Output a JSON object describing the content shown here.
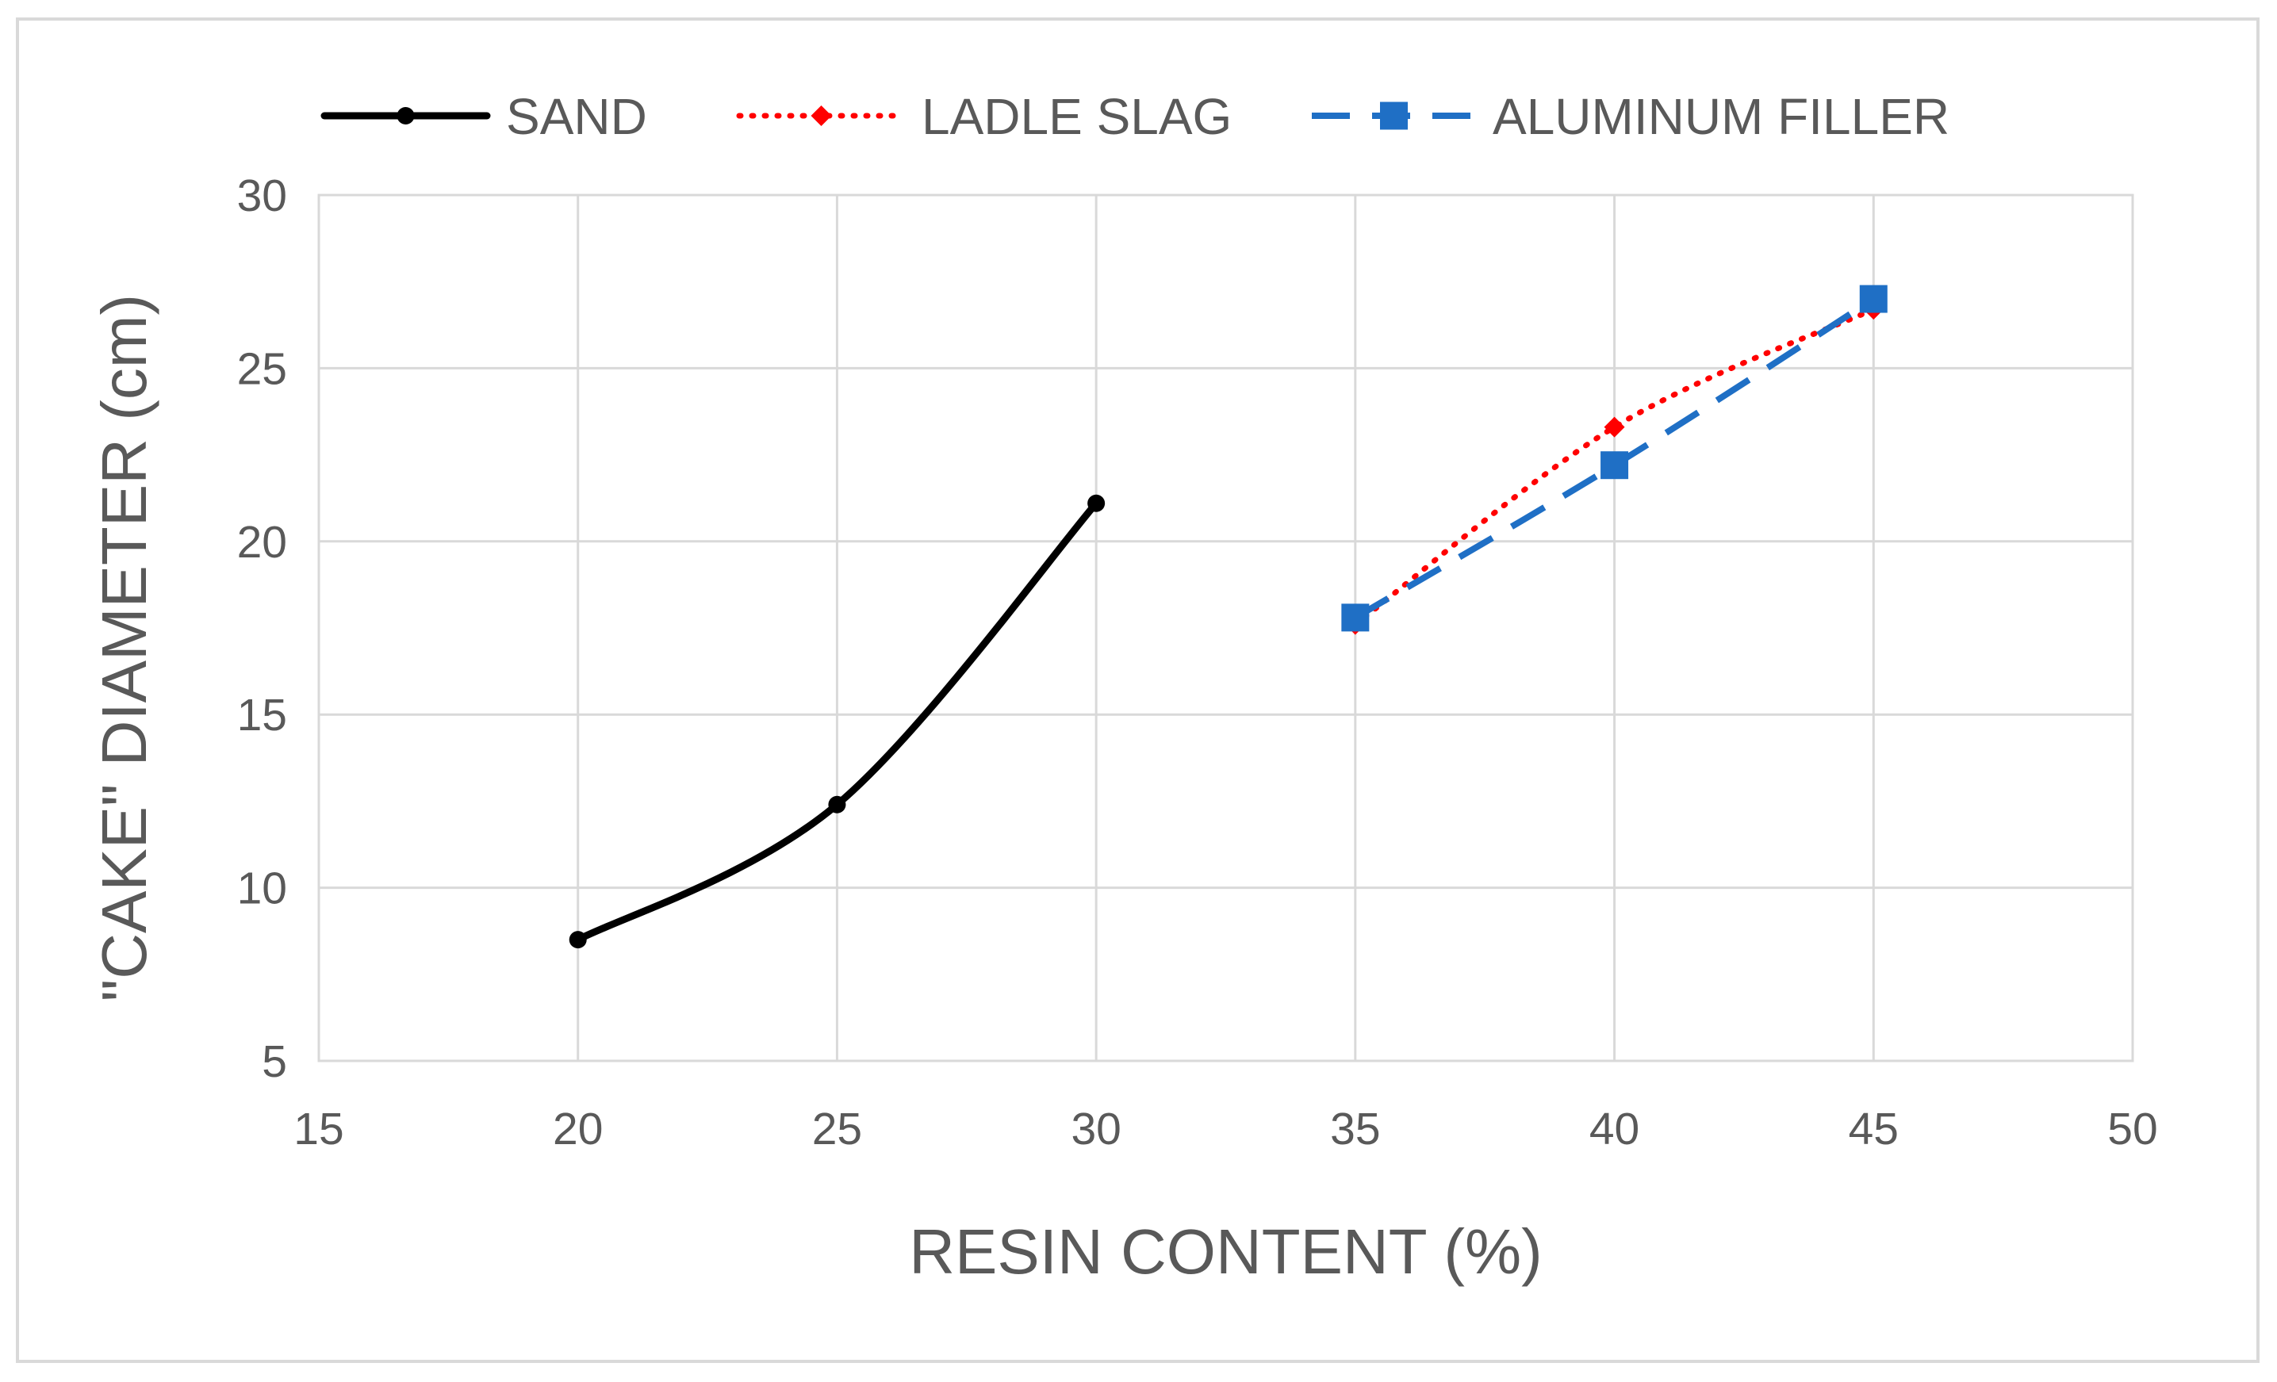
{
  "chart_data": {
    "type": "line",
    "title": "",
    "xlabel": "RESIN CONTENT (%)",
    "ylabel": "\"CAKE\" DIAMETER (cm)",
    "xlim": [
      15,
      50
    ],
    "ylim": [
      5,
      30
    ],
    "xticks": [
      15,
      20,
      25,
      30,
      35,
      40,
      45,
      50
    ],
    "yticks": [
      5,
      10,
      15,
      20,
      25,
      30
    ],
    "grid": true,
    "legend_position": "top",
    "series": [
      {
        "name": "SAND",
        "color": "#000000",
        "line_style": "solid",
        "marker": "circle",
        "x": [
          20,
          25,
          30
        ],
        "y": [
          8.5,
          12.4,
          21.1
        ]
      },
      {
        "name": "LADLE SLAG",
        "color": "#ff0000",
        "line_style": "dotted",
        "marker": "diamond",
        "x": [
          35,
          40,
          45
        ],
        "y": [
          17.6,
          23.3,
          26.7
        ]
      },
      {
        "name": "ALUMINUM FILLER",
        "color": "#1f6fc5",
        "line_style": "dashed",
        "marker": "square",
        "x": [
          35,
          40,
          45
        ],
        "y": [
          17.8,
          22.2,
          27.0
        ]
      }
    ]
  }
}
